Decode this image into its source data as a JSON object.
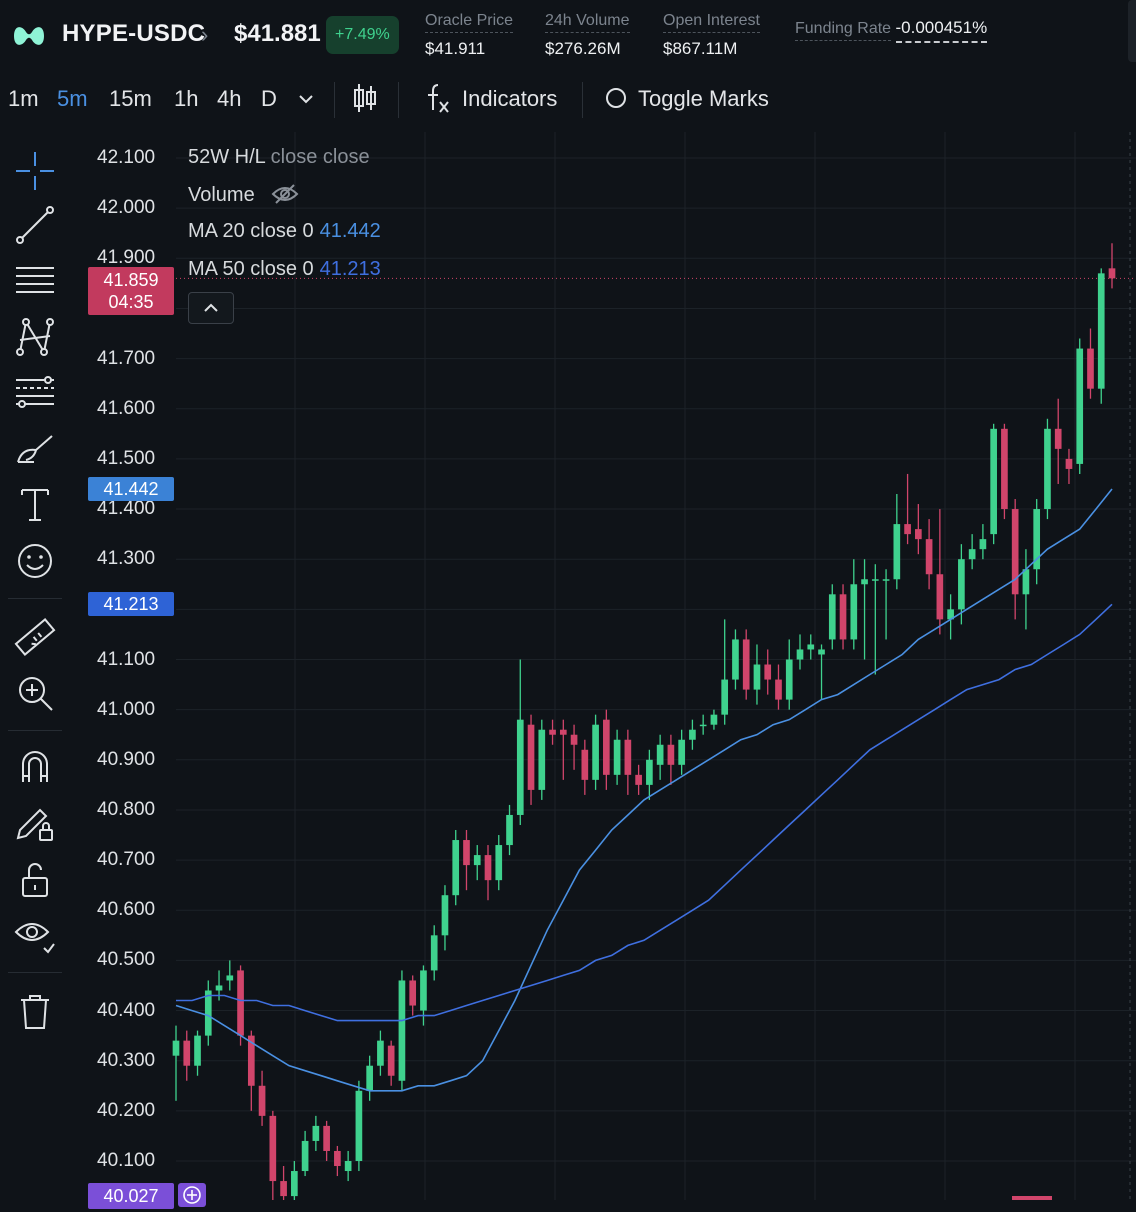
{
  "header": {
    "pair": "HYPE-USDC",
    "price": "$41.881",
    "change": "+7.49%",
    "stats": [
      {
        "label": "Oracle Price",
        "value": "$41.911"
      },
      {
        "label": "24h Volume",
        "value": "$276.26M"
      },
      {
        "label": "Open Interest",
        "value": "$867.11M"
      },
      {
        "label": "Funding Rate",
        "value": "-0.000451%"
      }
    ]
  },
  "toolbar": {
    "timeframes": [
      "1m",
      "5m",
      "15m",
      "1h",
      "4h",
      "D"
    ],
    "active_timeframe": "5m",
    "indicators_label": "Indicators",
    "toggle_marks_label": "Toggle Marks"
  },
  "legend": {
    "line1_a": "52W H/L",
    "line1_b": "close close",
    "line2": "Volume",
    "ma20_label": "MA 20 close 0",
    "ma20_value": "41.442",
    "ma50_label": "MA 50 close 0",
    "ma50_value": "41.213"
  },
  "price_tags": {
    "current_price": "41.859",
    "countdown": "04:35",
    "ma20": "41.442",
    "ma50": "41.213",
    "bottom": "40.027"
  },
  "colors": {
    "up": "#3fd28e",
    "down": "#d1456b",
    "ma20": "#4a90e2",
    "ma50": "#3f6fe0",
    "background": "#0f1318"
  },
  "chart_data": {
    "type": "candlestick",
    "y_ticks": [
      "42.100",
      "42.000",
      "41.900",
      "41.800",
      "41.700",
      "41.600",
      "41.500",
      "41.400",
      "41.300",
      "41.200",
      "41.100",
      "41.000",
      "40.900",
      "40.800",
      "40.700",
      "40.600",
      "40.500",
      "40.400",
      "40.300",
      "40.200",
      "40.100"
    ],
    "ylim": [
      40.02,
      42.16
    ],
    "series": [
      {
        "name": "MA 20 close 0",
        "values": [
          40.41,
          40.4,
          40.39,
          40.37,
          40.35,
          40.33,
          40.31,
          40.29,
          40.28,
          40.27,
          40.26,
          40.25,
          40.24,
          40.24,
          40.24,
          40.25,
          40.25,
          40.26,
          40.27,
          40.3,
          40.36,
          40.42,
          40.49,
          40.56,
          40.62,
          40.68,
          40.72,
          40.76,
          40.79,
          40.82,
          40.84,
          40.86,
          40.88,
          40.9,
          40.92,
          40.94,
          40.95,
          40.97,
          40.98,
          41.0,
          41.02,
          41.03,
          41.05,
          41.07,
          41.09,
          41.11,
          41.14,
          41.16,
          41.18,
          41.2,
          41.22,
          41.24,
          41.26,
          41.29,
          41.32,
          41.34,
          41.36,
          41.4,
          41.44
        ]
      },
      {
        "name": "MA 50 close 0",
        "values": [
          40.42,
          40.42,
          40.43,
          40.43,
          40.42,
          40.42,
          40.41,
          40.41,
          40.4,
          40.39,
          40.38,
          40.38,
          40.38,
          40.38,
          40.38,
          40.39,
          40.39,
          40.4,
          40.41,
          40.42,
          40.43,
          40.44,
          40.45,
          40.46,
          40.47,
          40.48,
          40.5,
          40.51,
          40.53,
          40.54,
          40.56,
          40.58,
          40.6,
          40.62,
          40.65,
          40.68,
          40.71,
          40.74,
          40.77,
          40.8,
          40.83,
          40.86,
          40.89,
          40.92,
          40.94,
          40.96,
          40.98,
          41.0,
          41.02,
          41.04,
          41.05,
          41.06,
          41.08,
          41.09,
          41.11,
          41.13,
          41.15,
          41.18,
          41.21
        ]
      }
    ],
    "candles": [
      [
        40.31,
        40.34,
        40.37,
        40.22
      ],
      [
        40.34,
        40.29,
        40.36,
        40.26
      ],
      [
        40.29,
        40.35,
        40.36,
        40.27
      ],
      [
        40.35,
        40.44,
        40.46,
        40.33
      ],
      [
        40.44,
        40.45,
        40.48,
        40.42
      ],
      [
        40.46,
        40.47,
        40.5,
        40.44
      ],
      [
        40.48,
        40.35,
        40.49,
        40.33
      ],
      [
        40.35,
        40.25,
        40.36,
        40.2
      ],
      [
        40.25,
        40.19,
        40.28,
        40.17
      ],
      [
        40.19,
        40.06,
        40.2,
        40.02
      ],
      [
        40.06,
        40.03,
        40.09,
        40.0
      ],
      [
        40.03,
        40.08,
        40.1,
        40.02
      ],
      [
        40.08,
        40.14,
        40.16,
        40.07
      ],
      [
        40.14,
        40.17,
        40.19,
        40.12
      ],
      [
        40.17,
        40.12,
        40.18,
        40.1
      ],
      [
        40.12,
        40.09,
        40.13,
        40.07
      ],
      [
        40.08,
        40.1,
        40.12,
        40.06
      ],
      [
        40.1,
        40.24,
        40.26,
        40.08
      ],
      [
        40.24,
        40.29,
        40.31,
        40.22
      ],
      [
        40.29,
        40.34,
        40.36,
        40.27
      ],
      [
        40.33,
        40.27,
        40.34,
        40.25
      ],
      [
        40.26,
        40.46,
        40.48,
        40.24
      ],
      [
        40.46,
        40.41,
        40.47,
        40.39
      ],
      [
        40.4,
        40.48,
        40.49,
        40.37
      ],
      [
        40.48,
        40.55,
        40.57,
        40.46
      ],
      [
        40.55,
        40.63,
        40.65,
        40.52
      ],
      [
        40.63,
        40.74,
        40.76,
        40.61
      ],
      [
        40.74,
        40.69,
        40.76,
        40.64
      ],
      [
        40.69,
        40.71,
        40.73,
        40.66
      ],
      [
        40.71,
        40.66,
        40.73,
        40.62
      ],
      [
        40.66,
        40.73,
        40.75,
        40.64
      ],
      [
        40.73,
        40.79,
        40.81,
        40.71
      ],
      [
        40.79,
        40.98,
        41.1,
        40.77
      ],
      [
        40.97,
        40.84,
        40.99,
        40.81
      ],
      [
        40.84,
        40.96,
        40.98,
        40.82
      ],
      [
        40.96,
        40.95,
        40.98,
        40.93
      ],
      [
        40.96,
        40.95,
        40.98,
        40.86
      ],
      [
        40.95,
        40.93,
        40.97,
        40.88
      ],
      [
        40.92,
        40.86,
        40.94,
        40.83
      ],
      [
        40.86,
        40.97,
        40.99,
        40.84
      ],
      [
        40.98,
        40.87,
        41.0,
        40.84
      ],
      [
        40.87,
        40.94,
        40.96,
        40.85
      ],
      [
        40.94,
        40.87,
        40.96,
        40.83
      ],
      [
        40.87,
        40.85,
        40.89,
        40.83
      ],
      [
        40.85,
        40.9,
        40.92,
        40.82
      ],
      [
        40.89,
        40.93,
        40.95,
        40.86
      ],
      [
        40.93,
        40.89,
        40.95,
        40.85
      ],
      [
        40.89,
        40.94,
        40.96,
        40.87
      ],
      [
        40.94,
        40.96,
        40.98,
        40.92
      ],
      [
        40.97,
        40.97,
        40.99,
        40.95
      ],
      [
        40.97,
        40.99,
        41.0,
        40.96
      ],
      [
        40.99,
        41.06,
        41.18,
        40.97
      ],
      [
        41.06,
        41.14,
        41.16,
        41.04
      ],
      [
        41.14,
        41.04,
        41.16,
        41.02
      ],
      [
        41.04,
        41.09,
        41.13,
        41.01
      ],
      [
        41.09,
        41.06,
        41.12,
        41.03
      ],
      [
        41.06,
        41.02,
        41.09,
        41.0
      ],
      [
        41.02,
        41.1,
        41.14,
        41.0
      ],
      [
        41.1,
        41.12,
        41.15,
        41.08
      ],
      [
        41.12,
        41.13,
        41.15,
        41.1
      ],
      [
        41.11,
        41.12,
        41.13,
        41.02
      ],
      [
        41.14,
        41.23,
        41.25,
        41.12
      ],
      [
        41.23,
        41.14,
        41.25,
        41.12
      ],
      [
        41.14,
        41.25,
        41.3,
        41.12
      ],
      [
        41.25,
        41.26,
        41.3,
        41.1
      ],
      [
        41.26,
        41.26,
        41.29,
        41.07
      ],
      [
        41.26,
        41.26,
        41.28,
        41.14
      ],
      [
        41.26,
        41.37,
        41.43,
        41.24
      ],
      [
        41.37,
        41.35,
        41.47,
        41.33
      ],
      [
        41.36,
        41.34,
        41.41,
        41.31
      ],
      [
        41.34,
        41.27,
        41.38,
        41.24
      ],
      [
        41.27,
        41.18,
        41.4,
        41.15
      ],
      [
        41.18,
        41.2,
        41.23,
        41.14
      ],
      [
        41.2,
        41.3,
        41.33,
        41.17
      ],
      [
        41.3,
        41.32,
        41.35,
        41.28
      ],
      [
        41.32,
        41.34,
        41.37,
        41.3
      ],
      [
        41.35,
        41.56,
        41.57,
        41.33
      ],
      [
        41.56,
        41.4,
        41.57,
        41.38
      ],
      [
        41.4,
        41.23,
        41.42,
        41.18
      ],
      [
        41.23,
        41.28,
        41.32,
        41.16
      ],
      [
        41.28,
        41.4,
        41.42,
        41.25
      ],
      [
        41.4,
        41.56,
        41.58,
        41.38
      ],
      [
        41.56,
        41.52,
        41.62,
        41.45
      ],
      [
        41.5,
        41.48,
        41.52,
        41.45
      ],
      [
        41.49,
        41.72,
        41.74,
        41.47
      ],
      [
        41.72,
        41.64,
        41.76,
        41.62
      ],
      [
        41.64,
        41.87,
        41.88,
        41.61
      ],
      [
        41.88,
        41.86,
        41.93,
        41.84
      ]
    ]
  }
}
